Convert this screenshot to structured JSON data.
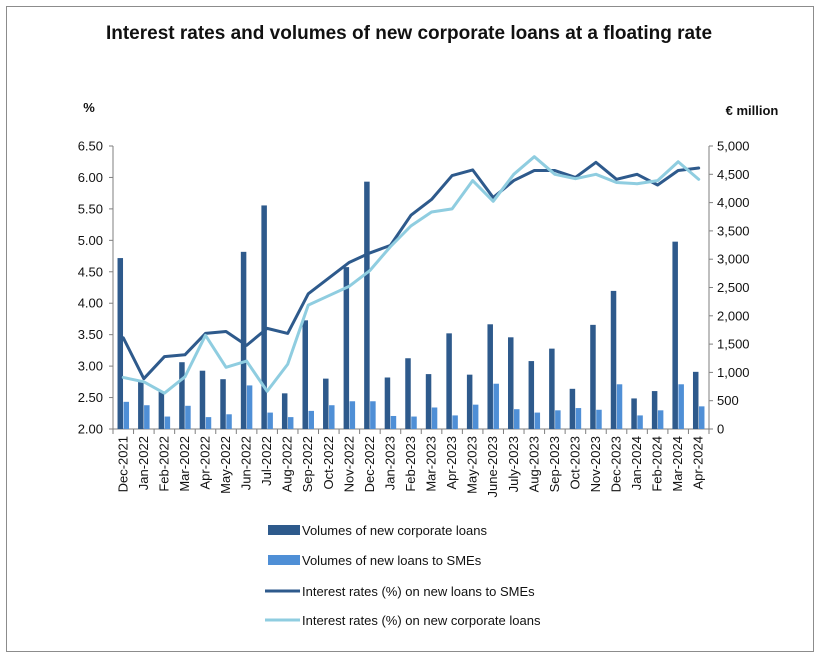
{
  "chart_data": {
    "type": "bar",
    "title": "Interest rates and volumes of new corporate loans at a floating rate",
    "ylabel_left": "%",
    "ylabel_right": "€ million",
    "ylim_left": [
      2.0,
      6.5
    ],
    "yticks_left": [
      "2.00",
      "2.50",
      "3.00",
      "3.50",
      "4.00",
      "4.50",
      "5.00",
      "5.50",
      "6.00",
      "6.50"
    ],
    "ylim_right": [
      0,
      5000
    ],
    "yticks_right": [
      "0",
      "500",
      "1,000",
      "1,500",
      "2,000",
      "2,500",
      "3,000",
      "3,500",
      "4,000",
      "4,500",
      "5,000"
    ],
    "categories": [
      "Dec-2021",
      "Jan-2022",
      "Feb-2022",
      "Mar-2022",
      "Apr-2022",
      "May-2022",
      "Jun-2022",
      "Jul-2022",
      "Aug-2022",
      "Sep-2022",
      "Oct-2022",
      "Nov-2022",
      "Dec-2022",
      "Jan-2023",
      "Feb-2023",
      "Mar-2023",
      "Apr-2023",
      "May-2023",
      "June-2023",
      "July-2023",
      "Aug-2023",
      "Sep-2023",
      "Oct-2023",
      "Nov-2023",
      "Dec-2023",
      "Jan-2024",
      "Feb-2024",
      "Mar-2024",
      "Apr-2024"
    ],
    "series": [
      {
        "name": "Volumes of new corporate loans",
        "kind": "bar",
        "axis": "right",
        "color": "#2e5a8c",
        "values": [
          3020,
          830,
          660,
          1180,
          1030,
          880,
          3130,
          3950,
          630,
          1920,
          890,
          2860,
          4370,
          910,
          1250,
          970,
          1690,
          960,
          1850,
          1620,
          1200,
          1420,
          710,
          1840,
          2440,
          540,
          670,
          3310,
          1010
        ]
      },
      {
        "name": "Volumes of new loans to SMEs",
        "kind": "bar",
        "axis": "right",
        "color": "#4f8fd6",
        "values": [
          480,
          420,
          220,
          410,
          210,
          260,
          770,
          290,
          210,
          320,
          420,
          490,
          490,
          230,
          220,
          380,
          240,
          430,
          800,
          350,
          290,
          330,
          370,
          340,
          790,
          240,
          330,
          790,
          400
        ]
      },
      {
        "name": "Interest rates (%) on new loans to SMEs",
        "kind": "line",
        "axis": "left",
        "color": "#2e5a8c",
        "values": [
          3.45,
          2.8,
          3.15,
          3.18,
          3.52,
          3.55,
          3.33,
          3.6,
          3.52,
          4.15,
          4.4,
          4.65,
          4.8,
          4.92,
          5.4,
          5.65,
          6.03,
          6.12,
          5.68,
          5.95,
          6.11,
          6.11,
          6.0,
          6.24,
          5.97,
          6.05,
          5.88,
          6.11,
          6.15
        ]
      },
      {
        "name": "Interest rates (%) on new corporate loans",
        "kind": "line",
        "axis": "left",
        "color": "#8fcde0",
        "values": [
          2.82,
          2.75,
          2.57,
          2.83,
          3.49,
          2.98,
          3.08,
          2.6,
          3.03,
          3.97,
          4.12,
          4.27,
          4.52,
          4.9,
          5.23,
          5.45,
          5.5,
          5.95,
          5.62,
          6.05,
          6.33,
          6.05,
          5.98,
          6.05,
          5.92,
          5.9,
          5.95,
          6.25,
          5.97
        ]
      }
    ]
  }
}
